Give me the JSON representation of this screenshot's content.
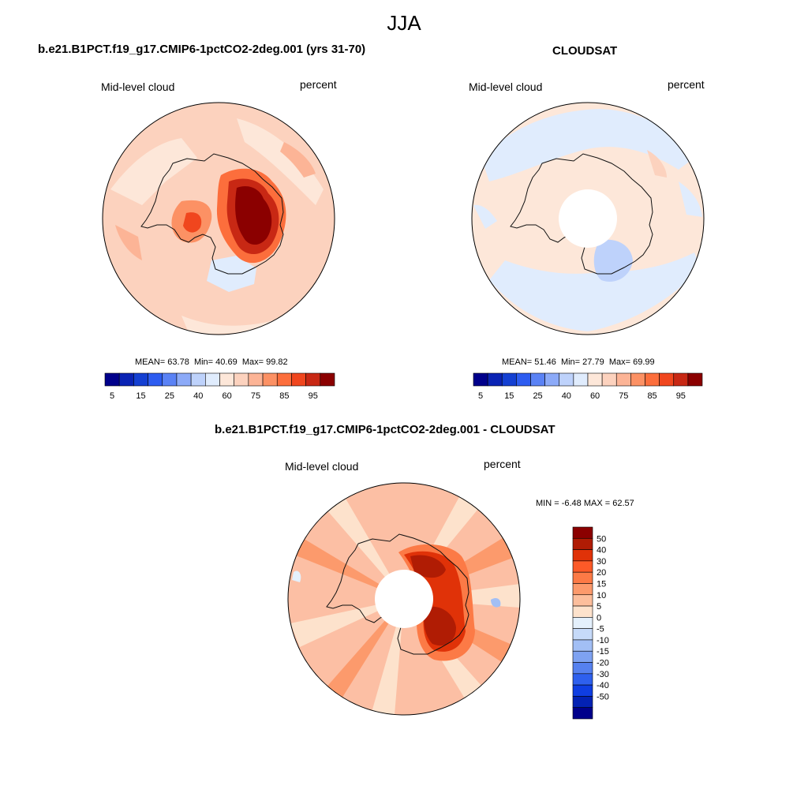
{
  "page": {
    "title": "JJA"
  },
  "panels": [
    {
      "id": "model",
      "title": "b.e21.B1PCT.f19_g17.CMIP6-1pctCO2-2deg.001 (yrs 31-70)",
      "left_label": "Mid-level cloud",
      "right_label": "percent",
      "stats": {
        "mean_label": "MEAN=",
        "mean": "63.78",
        "min_label": "Min=",
        "min": "40.69",
        "max_label": "Max=",
        "max": "99.82"
      },
      "background_color": "#fcd2be",
      "has_polar_hole": false
    },
    {
      "id": "obs",
      "title": "CLOUDSAT",
      "left_label": "Mid-level cloud",
      "right_label": "percent",
      "stats": {
        "mean_label": "MEAN=",
        "mean": "51.46",
        "min_label": "Min=",
        "min": "27.79",
        "max_label": "Max=",
        "max": "69.99"
      },
      "background_color": "#fde7d9",
      "has_polar_hole": true
    },
    {
      "id": "diff",
      "title": "b.e21.B1PCT.f19_g17.CMIP6-1pctCO2-2deg.001 - CLOUDSAT",
      "left_label": "Mid-level cloud",
      "right_label": "percent",
      "stats": {
        "min_label": "MIN =",
        "min": "-6.48",
        "max_label": "MAX =",
        "max": "62.57"
      },
      "background_color": "#fcbfa4",
      "has_polar_hole": true
    }
  ],
  "colorbar_abs": {
    "orientation": "horizontal",
    "colors": [
      "#00008b",
      "#0a23b4",
      "#1440d2",
      "#2d5cf0",
      "#5a82f5",
      "#8caaf8",
      "#bed2fb",
      "#e0ecfd",
      "#fde7d9",
      "#fcd2be",
      "#fcb496",
      "#fc9164",
      "#fc6e3c",
      "#f0461e",
      "#c82814",
      "#8b0000"
    ],
    "tick_labels": [
      "5",
      "15",
      "25",
      "40",
      "60",
      "75",
      "85",
      "95"
    ]
  },
  "colorbar_diff": {
    "orientation": "vertical",
    "colors": [
      "#8b0000",
      "#b01c04",
      "#e03208",
      "#fc5a28",
      "#fc7a46",
      "#fc9a6c",
      "#fcbe9c",
      "#fde2cc",
      "#e4f0fc",
      "#c6daf9",
      "#a2bff5",
      "#7ea2f2",
      "#5681ef",
      "#2e60ee",
      "#0f3ee2",
      "#0322b4",
      "#00008b"
    ],
    "tick_labels": [
      "50",
      "40",
      "30",
      "20",
      "15",
      "10",
      "5",
      "0",
      "-5",
      "-10",
      "-15",
      "-20",
      "-30",
      "-40",
      "-50"
    ]
  }
}
